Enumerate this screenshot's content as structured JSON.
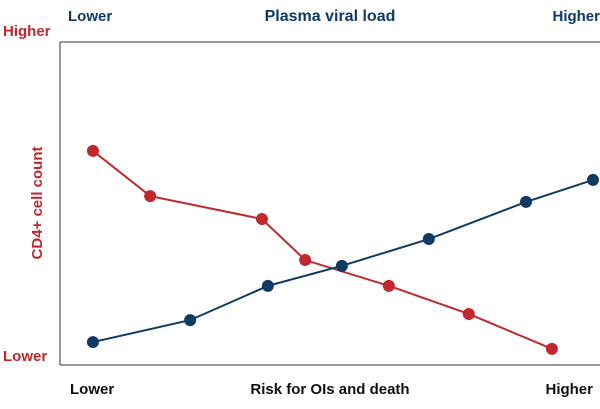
{
  "chart_data": {
    "type": "line",
    "xlabel": "Risk for OIs and death",
    "xlim": [
      0,
      100
    ],
    "ylim": [
      0,
      100
    ],
    "xticks": [
      {
        "value": 0,
        "label": "Lower"
      },
      {
        "value": 100,
        "label": "Higher"
      }
    ],
    "x2ticks": [
      {
        "value": 0,
        "label": "Lower"
      },
      {
        "value": 100,
        "label": "Higher"
      }
    ],
    "yticks": [
      {
        "value": 0,
        "label": "Lower"
      },
      {
        "value": 100,
        "label": "Higher"
      }
    ],
    "series": [
      {
        "name": "CD4+ cell count",
        "color": "#c0282d",
        "x": [
          6.1,
          16.7,
          37.4,
          45.4,
          60.9,
          75.7,
          91.1
        ],
        "values": [
          66.3,
          52.3,
          45.2,
          32.5,
          24.5,
          15.8,
          5.0
        ]
      },
      {
        "name": "Plasma viral load",
        "color": "#0f3a63",
        "x": [
          6.1,
          24.1,
          38.5,
          52.2,
          68.3,
          86.3,
          98.7
        ],
        "values": [
          7.1,
          13.9,
          24.5,
          30.7,
          39.0,
          50.5,
          57.3
        ]
      }
    ]
  }
}
